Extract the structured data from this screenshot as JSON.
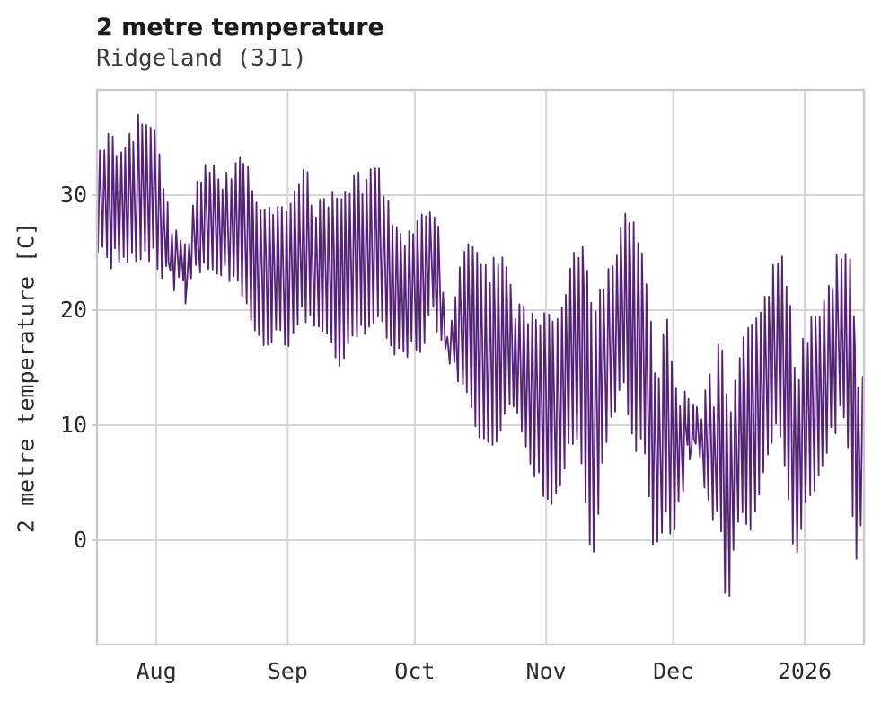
{
  "page": {
    "background": "#ffffff"
  },
  "chart_data": {
    "type": "line",
    "title": "2 metre temperature",
    "subtitle": "Ridgeland (3J1)",
    "ylabel": "2 metre temperature [C]",
    "xlabel": "",
    "grid": true,
    "legend": false,
    "colors": {
      "line": "#55217d",
      "grid": "#d6d6d6",
      "frame": "#c9c9c9",
      "title": "#1a1a1a",
      "subtitle": "#3c3c3c",
      "tick_label": "#2b2b2b",
      "background": "#ffffff"
    },
    "x_axis": {
      "tick_labels": [
        "Aug",
        "Sep",
        "Oct",
        "Nov",
        "Dec",
        "2026"
      ],
      "tick_days": [
        14,
        45,
        75,
        106,
        136,
        167
      ],
      "total_days": 181
    },
    "y_axis": {
      "tick_values": [
        0,
        10,
        20,
        30
      ],
      "unit": "C",
      "ylim": [
        -9.1,
        39.2
      ]
    },
    "envelope_note": "approximate daily min/max temperature (C); d = day index from left edge of plot (~2 weeks before Aug)",
    "daily_envelope_keyframes": [
      {
        "d": 0,
        "lo": 24.0,
        "hi": 35.0
      },
      {
        "d": 3,
        "lo": 23.5,
        "hi": 35.5
      },
      {
        "d": 6,
        "lo": 24.0,
        "hi": 33.5
      },
      {
        "d": 9,
        "lo": 24.0,
        "hi": 37.2
      },
      {
        "d": 12,
        "lo": 24.5,
        "hi": 36.0
      },
      {
        "d": 14,
        "lo": 23.5,
        "hi": 35.5
      },
      {
        "d": 16,
        "lo": 22.5,
        "hi": 30.0
      },
      {
        "d": 19,
        "lo": 21.5,
        "hi": 26.5
      },
      {
        "d": 21,
        "lo": 21.0,
        "hi": 25.5
      },
      {
        "d": 23,
        "lo": 22.0,
        "hi": 30.5
      },
      {
        "d": 25,
        "lo": 23.0,
        "hi": 33.5
      },
      {
        "d": 27,
        "lo": 23.5,
        "hi": 33.0
      },
      {
        "d": 29,
        "lo": 23.0,
        "hi": 31.5
      },
      {
        "d": 31,
        "lo": 22.5,
        "hi": 32.5
      },
      {
        "d": 33,
        "lo": 21.5,
        "hi": 33.5
      },
      {
        "d": 35,
        "lo": 21.0,
        "hi": 33.3
      },
      {
        "d": 37,
        "lo": 18.5,
        "hi": 30.0
      },
      {
        "d": 39,
        "lo": 16.5,
        "hi": 28.5
      },
      {
        "d": 41,
        "lo": 17.0,
        "hi": 29.5
      },
      {
        "d": 43,
        "lo": 17.5,
        "hi": 29.0
      },
      {
        "d": 45,
        "lo": 16.5,
        "hi": 29.0
      },
      {
        "d": 47,
        "lo": 18.0,
        "hi": 31.0
      },
      {
        "d": 49,
        "lo": 19.0,
        "hi": 33.4
      },
      {
        "d": 51,
        "lo": 18.5,
        "hi": 30.0
      },
      {
        "d": 53,
        "lo": 17.0,
        "hi": 29.5
      },
      {
        "d": 55,
        "lo": 17.5,
        "hi": 30.5
      },
      {
        "d": 57,
        "lo": 13.5,
        "hi": 29.5
      },
      {
        "d": 59,
        "lo": 16.0,
        "hi": 31.0
      },
      {
        "d": 61,
        "lo": 17.5,
        "hi": 32.0
      },
      {
        "d": 64,
        "lo": 18.0,
        "hi": 32.0
      },
      {
        "d": 66,
        "lo": 19.0,
        "hi": 33.4
      },
      {
        "d": 68,
        "lo": 18.0,
        "hi": 31.0
      },
      {
        "d": 70,
        "lo": 16.3,
        "hi": 27.5
      },
      {
        "d": 72,
        "lo": 15.5,
        "hi": 26.5
      },
      {
        "d": 74,
        "lo": 16.0,
        "hi": 27.5
      },
      {
        "d": 76,
        "lo": 15.9,
        "hi": 28.0
      },
      {
        "d": 78,
        "lo": 17.5,
        "hi": 29.5
      },
      {
        "d": 80,
        "lo": 19.0,
        "hi": 30.2
      },
      {
        "d": 82,
        "lo": 15.5,
        "hi": 19.5
      },
      {
        "d": 84,
        "lo": 15.0,
        "hi": 20.0
      },
      {
        "d": 86,
        "lo": 13.4,
        "hi": 25.0
      },
      {
        "d": 88,
        "lo": 12.5,
        "hi": 26.3
      },
      {
        "d": 90,
        "lo": 8.5,
        "hi": 26.5
      },
      {
        "d": 92,
        "lo": 6.6,
        "hi": 24.0
      },
      {
        "d": 94,
        "lo": 8.0,
        "hi": 25.0
      },
      {
        "d": 96,
        "lo": 9.5,
        "hi": 24.5
      },
      {
        "d": 98,
        "lo": 12.4,
        "hi": 21.5
      },
      {
        "d": 100,
        "lo": 9.0,
        "hi": 20.5
      },
      {
        "d": 102,
        "lo": 7.0,
        "hi": 20.0
      },
      {
        "d": 104,
        "lo": 5.0,
        "hi": 19.0
      },
      {
        "d": 106,
        "lo": 1.9,
        "hi": 20.0
      },
      {
        "d": 108,
        "lo": 3.2,
        "hi": 19.5
      },
      {
        "d": 110,
        "lo": 5.0,
        "hi": 21.0
      },
      {
        "d": 112,
        "lo": 7.5,
        "hi": 24.5
      },
      {
        "d": 114,
        "lo": 8.1,
        "hi": 26.5
      },
      {
        "d": 115,
        "lo": 5.0,
        "hi": 26.0
      },
      {
        "d": 117,
        "lo": -2.3,
        "hi": 19.0
      },
      {
        "d": 118,
        "lo": -1.5,
        "hi": 22.0
      },
      {
        "d": 120,
        "lo": 8.0,
        "hi": 23.5
      },
      {
        "d": 122,
        "lo": 10.0,
        "hi": 24.0
      },
      {
        "d": 124,
        "lo": 13.0,
        "hi": 28.5
      },
      {
        "d": 126,
        "lo": 10.0,
        "hi": 28.4
      },
      {
        "d": 128,
        "lo": 6.9,
        "hi": 25.4
      },
      {
        "d": 130,
        "lo": 7.5,
        "hi": 23.7
      },
      {
        "d": 131,
        "lo": 0.0,
        "hi": 16.0
      },
      {
        "d": 133,
        "lo": -2.4,
        "hi": 14.0
      },
      {
        "d": 134,
        "lo": 2.0,
        "hi": 23.0
      },
      {
        "d": 136,
        "lo": -0.5,
        "hi": 14.0
      },
      {
        "d": 138,
        "lo": 3.0,
        "hi": 13.5
      },
      {
        "d": 140,
        "lo": 8.0,
        "hi": 12.0
      },
      {
        "d": 142,
        "lo": 8.5,
        "hi": 11.5
      },
      {
        "d": 144,
        "lo": 2.7,
        "hi": 15.0
      },
      {
        "d": 146,
        "lo": 1.0,
        "hi": 13.0
      },
      {
        "d": 147,
        "lo": 2.0,
        "hi": 21.1
      },
      {
        "d": 149,
        "lo": -6.8,
        "hi": 10.0
      },
      {
        "d": 151,
        "lo": 0.1,
        "hi": 15.5
      },
      {
        "d": 153,
        "lo": 1.5,
        "hi": 19.3
      },
      {
        "d": 155,
        "lo": 0.6,
        "hi": 19.0
      },
      {
        "d": 157,
        "lo": 4.0,
        "hi": 20.2
      },
      {
        "d": 159,
        "lo": 7.9,
        "hi": 24.1
      },
      {
        "d": 161,
        "lo": 10.0,
        "hi": 26.5
      },
      {
        "d": 163,
        "lo": 5.0,
        "hi": 22.2
      },
      {
        "d": 165,
        "lo": -2.3,
        "hi": 15.0
      },
      {
        "d": 167,
        "lo": 1.9,
        "hi": 18.5
      },
      {
        "d": 169,
        "lo": 3.5,
        "hi": 19.7
      },
      {
        "d": 171,
        "lo": 4.5,
        "hi": 21.0
      },
      {
        "d": 173,
        "lo": 8.0,
        "hi": 23.0
      },
      {
        "d": 175,
        "lo": 9.7,
        "hi": 25.5
      },
      {
        "d": 177,
        "lo": 11.0,
        "hi": 27.0
      },
      {
        "d": 179,
        "lo": -0.9,
        "hi": 17.0
      },
      {
        "d": 180,
        "lo": -3.0,
        "hi": 12.0
      },
      {
        "d": 181,
        "lo": 5.0,
        "hi": 17.0
      }
    ]
  }
}
